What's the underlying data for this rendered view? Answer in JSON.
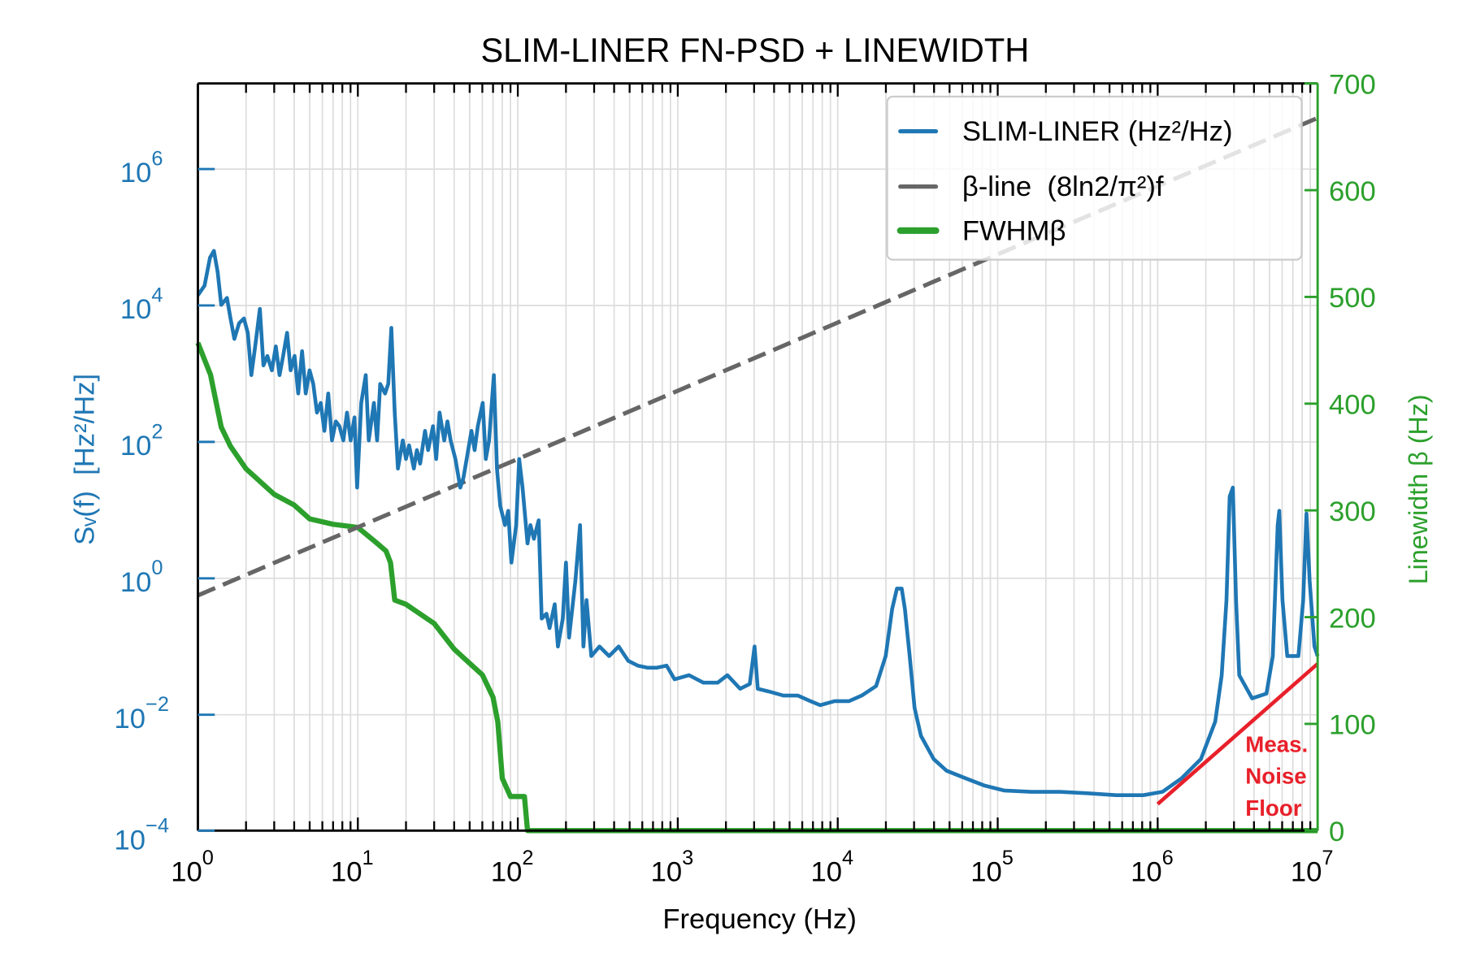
{
  "chart_data": {
    "type": "line",
    "title": "SLIM-LINER FN-PSD + LINEWIDTH",
    "xlabel": "Frequency (Hz)",
    "ylabel": "Sᵥ(f)  [Hz²/Hz]",
    "ylabel_right": "Linewidth β (Hz)",
    "xscale": "log",
    "yscale": "log",
    "xlim": [
      1,
      10000000
    ],
    "ylim": [
      0.0002,
      18000000
    ],
    "ylim_right": [
      0,
      700
    ],
    "xticks": [
      1,
      10,
      100,
      1000,
      10000,
      100000,
      1000000,
      10000000
    ],
    "yticks": [
      1000000,
      10000,
      100,
      1,
      0.01,
      0.0001
    ],
    "yticks_right": [
      0,
      100,
      200,
      300,
      400,
      500,
      600,
      700
    ],
    "grid": true,
    "legend_position": "top-right",
    "colors": {
      "psd": "#1f77b4",
      "beta_line": "#666666",
      "fwhm": "#2ca02c",
      "noise_floor": "#e8202a",
      "right_axis": "#2ca02c"
    },
    "series": [
      {
        "name": "SLIM-LINER (Hz²/Hz)",
        "axis": "left",
        "points": [
          [
            1,
            14100
          ],
          [
            1.1,
            19500
          ],
          [
            1.19,
            50100
          ],
          [
            1.26,
            63100
          ],
          [
            1.33,
            30900
          ],
          [
            1.4,
            10200
          ],
          [
            1.52,
            12900
          ],
          [
            1.6,
            6460
          ],
          [
            1.69,
            3240
          ],
          [
            1.81,
            5500
          ],
          [
            1.94,
            6460
          ],
          [
            2.05,
            3980
          ],
          [
            2.16,
            955
          ],
          [
            2.28,
            2510
          ],
          [
            2.44,
            8910
          ],
          [
            2.57,
            1320
          ],
          [
            2.72,
            1820
          ],
          [
            2.9,
            1120
          ],
          [
            3.07,
            2510
          ],
          [
            3.24,
            955
          ],
          [
            3.41,
            1820
          ],
          [
            3.61,
            3980
          ],
          [
            3.8,
            1120
          ],
          [
            4.02,
            1820
          ],
          [
            4.24,
            513
          ],
          [
            4.48,
            2140
          ],
          [
            4.72,
            513
          ],
          [
            4.99,
            1120
          ],
          [
            5.26,
            708
          ],
          [
            5.55,
            269
          ],
          [
            5.86,
            372
          ],
          [
            6.18,
            145
          ],
          [
            6.53,
            513
          ],
          [
            6.89,
            105
          ],
          [
            7.28,
            200
          ],
          [
            7.67,
            170
          ],
          [
            8.11,
            105
          ],
          [
            8.55,
            269
          ],
          [
            9.02,
            105
          ],
          [
            9.53,
            229
          ],
          [
            9.9,
            21.4
          ],
          [
            10.5,
            372
          ],
          [
            11.2,
            955
          ],
          [
            11.7,
            105
          ],
          [
            12.6,
            372
          ],
          [
            13.2,
            105
          ],
          [
            13.8,
            708
          ],
          [
            14.8,
            513
          ],
          [
            15.5,
            708
          ],
          [
            16.2,
            4680
          ],
          [
            17,
            269
          ],
          [
            17.8,
            40.7
          ],
          [
            19.1,
            105
          ],
          [
            20,
            56.2
          ],
          [
            20.9,
            89.1
          ],
          [
            22.4,
            40.7
          ],
          [
            23.4,
            75.9
          ],
          [
            24.5,
            47.9
          ],
          [
            26.3,
            145
          ],
          [
            27.5,
            75.9
          ],
          [
            29.5,
            170
          ],
          [
            30.9,
            56.2
          ],
          [
            32.4,
            269
          ],
          [
            34.7,
            105
          ],
          [
            36.3,
            200
          ],
          [
            38,
            105
          ],
          [
            40.7,
            56.2
          ],
          [
            43.7,
            21.4
          ],
          [
            45.7,
            29.5
          ],
          [
            47.9,
            56.2
          ],
          [
            51.3,
            145
          ],
          [
            53.7,
            75.9
          ],
          [
            56.2,
            170
          ],
          [
            60.3,
            372
          ],
          [
            63.1,
            56.2
          ],
          [
            66.1,
            105
          ],
          [
            70.8,
            955
          ],
          [
            74.1,
            40.7
          ],
          [
            77.6,
            11.5
          ],
          [
            83.2,
            6.03
          ],
          [
            87.1,
            9.77
          ],
          [
            91.2,
            1.7
          ],
          [
            97.7,
            6.03
          ],
          [
            102,
            56.2
          ],
          [
            107,
            21.4
          ],
          [
            115,
            3.24
          ],
          [
            120,
            6.03
          ],
          [
            126,
            3.8
          ],
          [
            135,
            7.08
          ],
          [
            141,
            0.257
          ],
          [
            151,
            0.302
          ],
          [
            158,
            0.186
          ],
          [
            170,
            0.417
          ],
          [
            178,
            0.1
          ],
          [
            191,
            0.257
          ],
          [
            200,
            1.7
          ],
          [
            209,
            0.135
          ],
          [
            229,
            0.912
          ],
          [
            245,
            6.03
          ],
          [
            257,
            0.1
          ],
          [
            269,
            0.479
          ],
          [
            288,
            0.0724
          ],
          [
            324,
            0.1
          ],
          [
            372,
            0.0724
          ],
          [
            427,
            0.1
          ],
          [
            490,
            0.0617
          ],
          [
            562,
            0.0525
          ],
          [
            646,
            0.049
          ],
          [
            741,
            0.049
          ],
          [
            851,
            0.0525
          ],
          [
            955,
            0.0331
          ],
          [
            1175,
            0.038
          ],
          [
            1445,
            0.0295
          ],
          [
            1778,
            0.0295
          ],
          [
            2042,
            0.038
          ],
          [
            2455,
            0.024
          ],
          [
            2818,
            0.0282
          ],
          [
            3020,
            0.1
          ],
          [
            3162,
            0.024
          ],
          [
            3715,
            0.0219
          ],
          [
            4571,
            0.0191
          ],
          [
            5623,
            0.0191
          ],
          [
            6761,
            0.0158
          ],
          [
            7762,
            0.0138
          ],
          [
            9550,
            0.0158
          ],
          [
            11750,
            0.0158
          ],
          [
            14130,
            0.0191
          ],
          [
            17380,
            0.0263
          ],
          [
            19950,
            0.0724
          ],
          [
            21880,
            0.355
          ],
          [
            23440,
            0.708
          ],
          [
            25120,
            0.708
          ],
          [
            26300,
            0.355
          ],
          [
            28180,
            0.0724
          ],
          [
            30200,
            0.0126
          ],
          [
            33110,
            0.0049
          ],
          [
            39810,
            0.00224
          ],
          [
            47860,
            0.00151
          ],
          [
            63100,
            0.00117
          ],
          [
            83180,
            0.000912
          ],
          [
            109600,
            0.000776
          ],
          [
            162200,
            0.000741
          ],
          [
            245500,
            0.000741
          ],
          [
            363100,
            0.000708
          ],
          [
            549500,
            0.000661
          ],
          [
            812800,
            0.000661
          ],
          [
            1072000,
            0.000741
          ],
          [
            1413000,
            0.00117
          ],
          [
            1862000,
            0.00224
          ],
          [
            2291000,
            0.00794
          ],
          [
            2512000,
            0.038
          ],
          [
            2692000,
            0.479
          ],
          [
            2818000,
            15.8
          ],
          [
            2951000,
            21.4
          ],
          [
            3090000,
            0.479
          ],
          [
            3236000,
            0.038
          ],
          [
            3890000,
            0.0174
          ],
          [
            4786000,
            0.0204
          ],
          [
            5248000,
            0.0724
          ],
          [
            5623000,
            6.03
          ],
          [
            5754000,
            9.77
          ],
          [
            6026000,
            0.479
          ],
          [
            6457000,
            0.0724
          ],
          [
            7586000,
            0.0724
          ],
          [
            8128000,
            0.479
          ],
          [
            8511000,
            8.91
          ],
          [
            8913000,
            0.912
          ],
          [
            9550000,
            0.1
          ],
          [
            10000000,
            0.0724
          ]
        ]
      },
      {
        "name": "β-line  (8ln2/π²)f",
        "axis": "left",
        "style": "dashed",
        "coefficient": 0.5618,
        "points": [
          [
            1,
            0.5618
          ],
          [
            10000000,
            5618000
          ]
        ]
      },
      {
        "name": "FWHMβ",
        "axis": "right",
        "points": [
          [
            1,
            457
          ],
          [
            1.2,
            427
          ],
          [
            1.4,
            378
          ],
          [
            1.6,
            360
          ],
          [
            2,
            339
          ],
          [
            3,
            315
          ],
          [
            4,
            305
          ],
          [
            5,
            292
          ],
          [
            7,
            287
          ],
          [
            10,
            284
          ],
          [
            13,
            270
          ],
          [
            15,
            262
          ],
          [
            16,
            251
          ],
          [
            17,
            216
          ],
          [
            20,
            212
          ],
          [
            30,
            194
          ],
          [
            40,
            170
          ],
          [
            45,
            163
          ],
          [
            60,
            146
          ],
          [
            70,
            125
          ],
          [
            75,
            102
          ],
          [
            80,
            49
          ],
          [
            90,
            32
          ],
          [
            110,
            32
          ],
          [
            115,
            0
          ],
          [
            10000000,
            0
          ]
        ]
      },
      {
        "axis": "left",
        "points": [
          [
            1000000,
            0.00049
          ],
          [
            10000000,
            0.056
          ]
        ]
      }
    ],
    "annotations": [
      {
        "lines": [
          "Meas.",
          "Noise",
          "Floor"
        ],
        "color": "#e8202a"
      }
    ]
  }
}
